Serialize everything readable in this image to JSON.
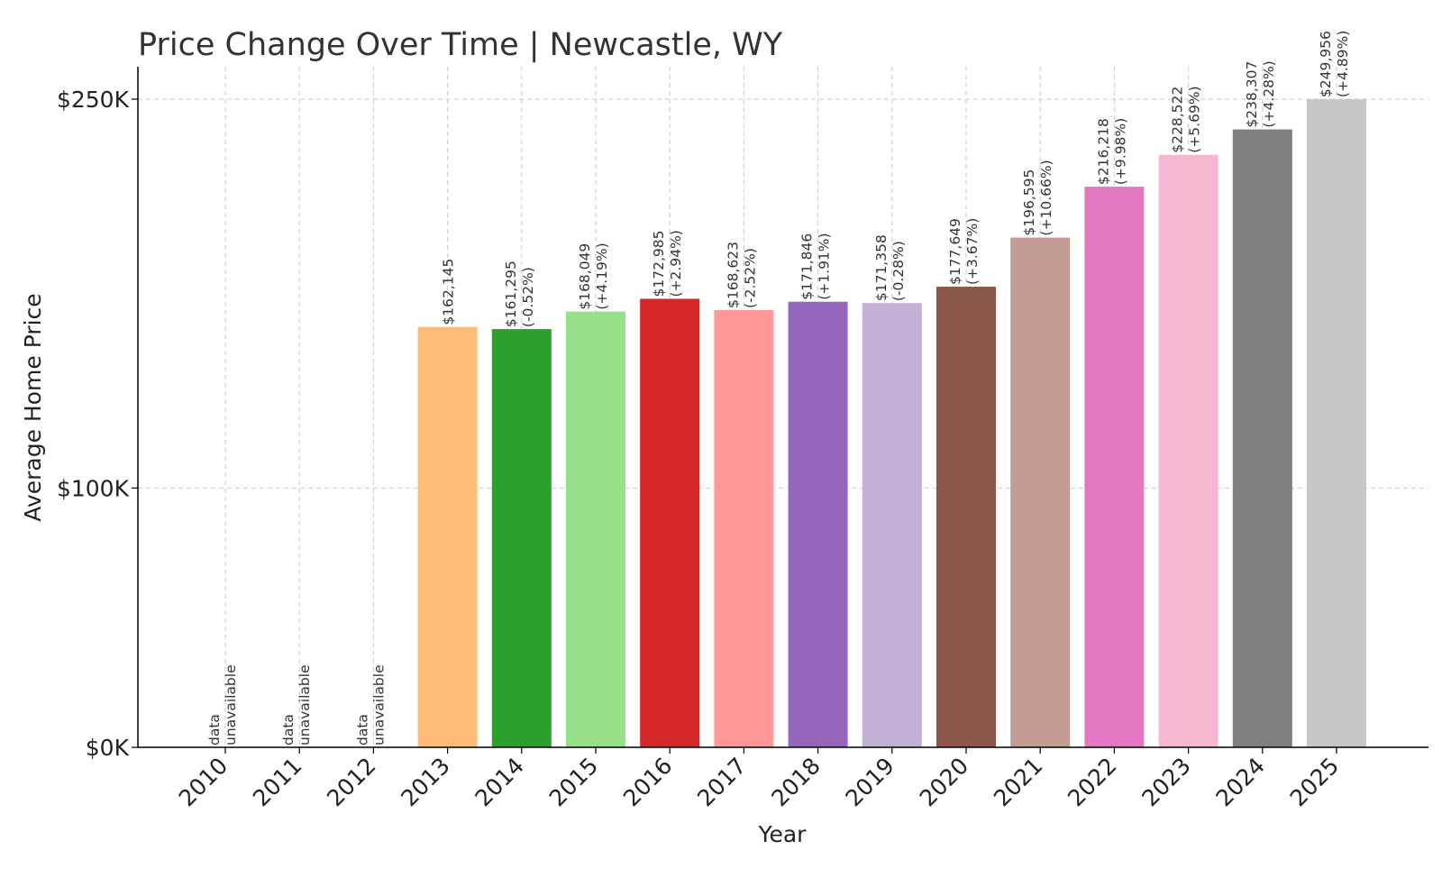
{
  "chart_data": {
    "type": "bar",
    "title": "Price Change Over Time | Newcastle, WY",
    "xlabel": "Year",
    "ylabel": "Average Home Price",
    "categories": [
      "2010",
      "2011",
      "2012",
      "2013",
      "2014",
      "2015",
      "2016",
      "2017",
      "2018",
      "2019",
      "2020",
      "2021",
      "2022",
      "2023",
      "2024",
      "2025"
    ],
    "values": [
      null,
      null,
      null,
      162145,
      161295,
      168049,
      172985,
      168623,
      171846,
      171358,
      177649,
      196595,
      216218,
      228522,
      238307,
      249956
    ],
    "value_labels": [
      "",
      "",
      "",
      "$162,145",
      "$161,295",
      "$168,049",
      "$172,985",
      "$168,623",
      "$171,846",
      "$171,358",
      "$177,649",
      "$196,595",
      "$216,218",
      "$228,522",
      "$238,307",
      "$249,956"
    ],
    "change_labels": [
      "",
      "",
      "",
      "",
      "(-0.52%)",
      "(+4.19%)",
      "(+2.94%)",
      "(-2.52%)",
      "(+1.91%)",
      "(-0.28%)",
      "(+3.67%)",
      "(+10.66%)",
      "(+9.98%)",
      "(+5.69%)",
      "(+4.28%)",
      "(+4.89%)"
    ],
    "unavailable_label": [
      "data",
      "unavailable"
    ],
    "colors": [
      "#1f77b4",
      "#aec7e8",
      "#ff7f0e",
      "#ffbb78",
      "#2ca02c",
      "#98df8a",
      "#d62728",
      "#ff9896",
      "#9467bd",
      "#c5b0d5",
      "#8c564b",
      "#c49c94",
      "#e377c2",
      "#f7b6d2",
      "#7f7f7f",
      "#c7c7c7"
    ],
    "yticks": [
      0,
      100000,
      250000
    ],
    "ytick_labels": [
      "$0K",
      "$100K",
      "$250K"
    ],
    "ylim": [
      0,
      262500
    ],
    "grid": true
  }
}
